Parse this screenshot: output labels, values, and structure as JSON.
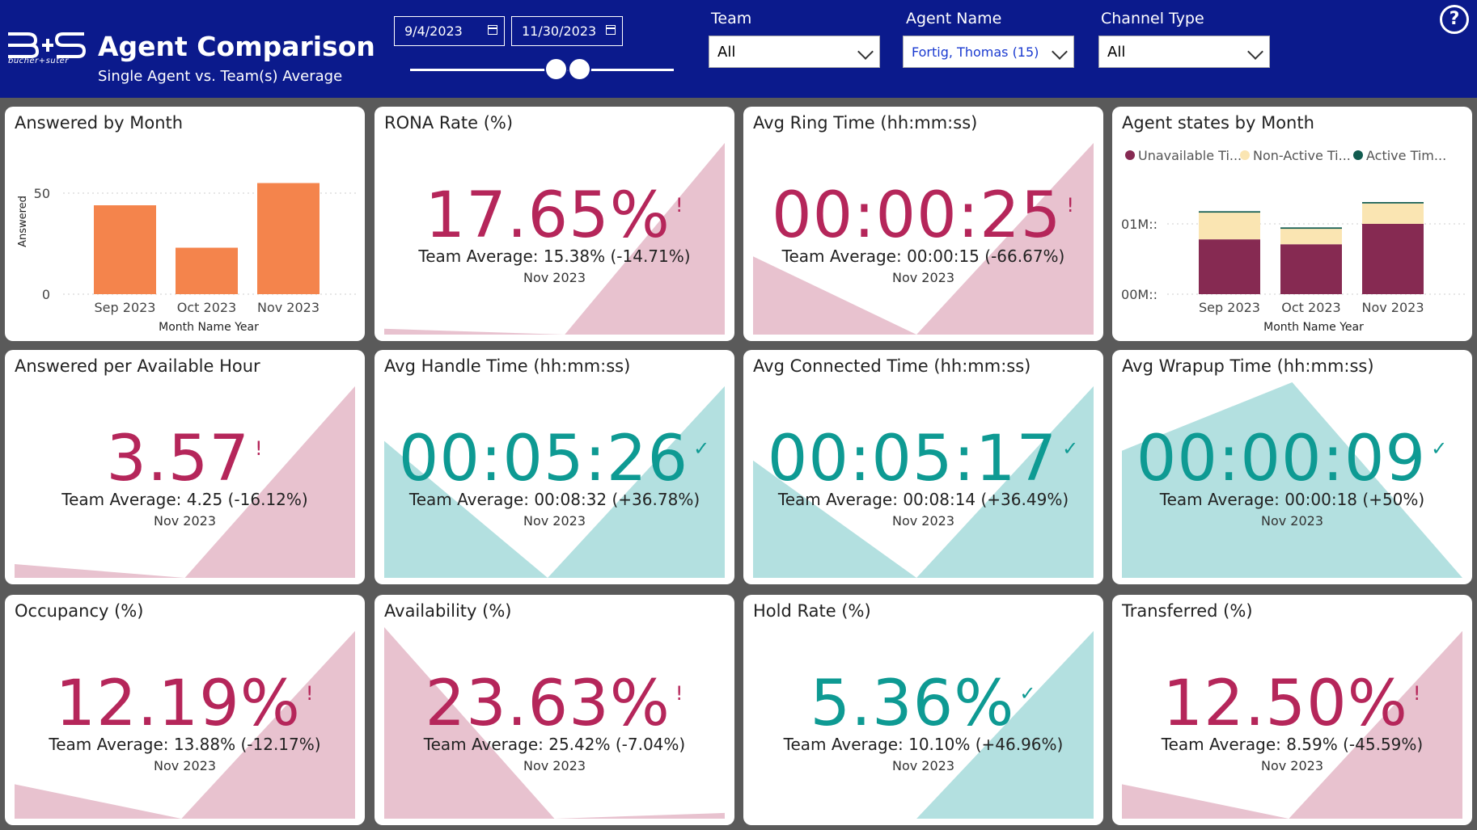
{
  "header": {
    "title": "Agent Comparison",
    "subtitle": "Single Agent vs. Team(s) Average",
    "logo_text": "bucher+suter",
    "date_start": "9/4/2023",
    "date_end": "11/30/2023",
    "team_label": "Team",
    "team_value": "All",
    "agent_label": "Agent Name",
    "agent_value": "Fortig, Thomas (15)",
    "channel_label": "Channel Type",
    "channel_value": "All",
    "help": "?"
  },
  "cards": {
    "answered_by_month": {
      "title": "Answered by Month",
      "chart_data": {
        "type": "bar",
        "categories": [
          "Sep 2023",
          "Oct 2023",
          "Nov 2023"
        ],
        "values": [
          44,
          23,
          55
        ],
        "xlabel": "Month Name Year",
        "ylabel": "Answered",
        "yticks": [
          "50",
          "0"
        ],
        "ylim": [
          0,
          60
        ],
        "color": "#f4844c"
      }
    },
    "agent_states": {
      "title": "Agent states by Month",
      "chart_data": {
        "type": "bar",
        "stacked": true,
        "categories": [
          "Sep 2023",
          "Oct 2023",
          "Nov 2023"
        ],
        "series": [
          {
            "name": "Unavailable Ti...",
            "color": "#862a52",
            "values": [
              0.78,
              0.71,
              1.0
            ]
          },
          {
            "name": "Non-Active Ti...",
            "color": "#fae5b2",
            "values": [
              0.38,
              0.22,
              0.29
            ]
          },
          {
            "name": "Active Tim...",
            "color": "#125c50",
            "values": [
              0.02,
              0.02,
              0.02
            ]
          }
        ],
        "xlabel": "Month Name Year",
        "yticks": [
          "01M::",
          "00M::"
        ],
        "legend": "top-left"
      }
    },
    "kpis": [
      {
        "title": "RONA Rate (%)",
        "value": "17.65%",
        "status": "bad",
        "mark": "!",
        "team": "Team Average: 15.38% (-14.71%)",
        "period": "Nov 2023"
      },
      {
        "title": "Avg Ring Time (hh:mm:ss)",
        "value": "00:00:25",
        "status": "bad",
        "mark": "!",
        "team": "Team Average: 00:00:15 (-66.67%)",
        "period": "Nov 2023"
      },
      {
        "title": "Answered per Available Hour",
        "value": "3.57",
        "status": "bad",
        "mark": "!",
        "team": "Team Average: 4.25 (-16.12%)",
        "period": "Nov 2023"
      },
      {
        "title": "Avg Handle Time (hh:mm:ss)",
        "value": "00:05:26",
        "status": "good",
        "mark": "✓",
        "team": "Team Average: 00:08:32 (+36.78%)",
        "period": "Nov 2023"
      },
      {
        "title": "Avg Connected Time (hh:mm:ss)",
        "value": "00:05:17",
        "status": "good",
        "mark": "✓",
        "team": "Team Average: 00:08:14 (+36.49%)",
        "period": "Nov 2023"
      },
      {
        "title": "Avg Wrapup Time (hh:mm:ss)",
        "value": "00:00:09",
        "status": "good",
        "mark": "✓",
        "team": "Team Average: 00:00:18 (+50%)",
        "period": "Nov 2023"
      },
      {
        "title": "Occupancy (%)",
        "value": "12.19%",
        "status": "bad",
        "mark": "!",
        "team": "Team Average: 13.88% (-12.17%)",
        "period": "Nov 2023"
      },
      {
        "title": "Availability (%)",
        "value": "23.63%",
        "status": "bad",
        "mark": "!",
        "team": "Team Average: 25.42% (-7.04%)",
        "period": "Nov 2023"
      },
      {
        "title": "Hold Rate (%)",
        "value": "5.36%",
        "status": "good",
        "mark": "✓",
        "team": "Team Average: 10.10% (+46.96%)",
        "period": "Nov 2023"
      },
      {
        "title": "Transferred (%)",
        "value": "12.50%",
        "status": "bad",
        "mark": "!",
        "team": "Team Average: 8.59% (-45.59%)",
        "period": "Nov 2023"
      }
    ]
  },
  "colors": {
    "header": "#0b1a8c",
    "bad": "#b5265a",
    "good": "#0e9a93",
    "bad_fill": "#e8c2cf",
    "good_fill": "#b3e0e0"
  }
}
